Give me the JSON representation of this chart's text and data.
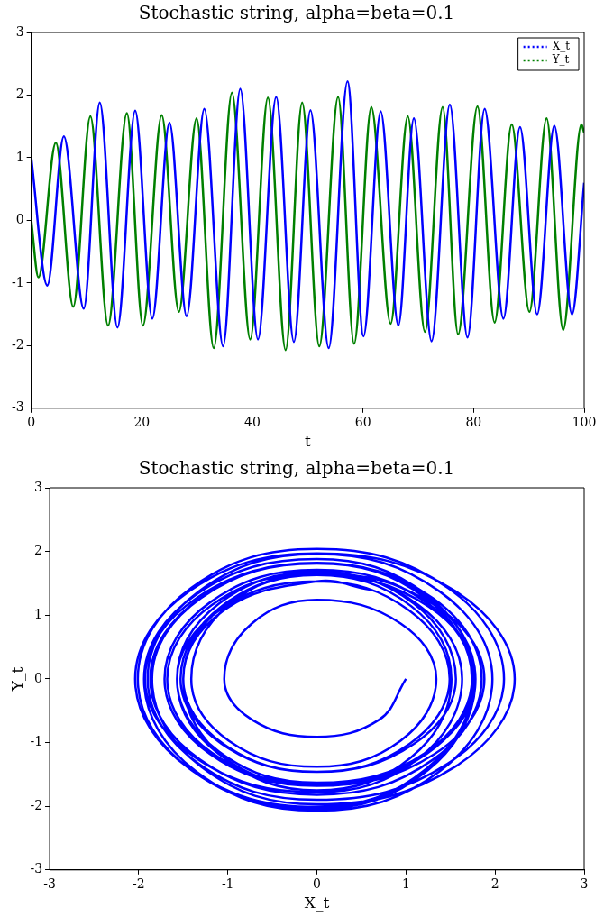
{
  "chart_data": [
    {
      "type": "line",
      "title": "Stochastic string, alpha=beta=0.1",
      "xlabel": "t",
      "xlim": [
        0,
        100
      ],
      "xticks": [
        0,
        20,
        40,
        60,
        80,
        100
      ],
      "ylim": [
        -3,
        3
      ],
      "yticks": [
        -3,
        -2,
        -1,
        0,
        1,
        2,
        3
      ],
      "grid": false,
      "legend": "top right",
      "marker": "none",
      "series": [
        {
          "name": "X_t",
          "color": "#0000ff",
          "x": [
            0,
            2.9,
            5.9,
            9.5,
            12.4,
            15.6,
            18.8,
            21.9,
            25.0,
            28.1,
            31.3,
            34.7,
            37.8,
            41.0,
            44.3,
            47.5,
            50.5,
            53.8,
            57.2,
            60.1,
            63.2,
            66.4,
            69.2,
            72.4,
            75.7,
            78.9,
            82.0,
            85.4,
            88.4,
            91.5,
            94.6,
            97.8,
            100
          ],
          "values": [
            1.0,
            -1.04,
            1.34,
            -1.41,
            1.88,
            -1.71,
            1.75,
            -1.57,
            1.56,
            -1.53,
            1.78,
            -2.01,
            2.1,
            -1.9,
            1.97,
            -1.94,
            1.76,
            -2.04,
            2.22,
            -1.85,
            1.74,
            -1.68,
            1.63,
            -1.93,
            1.85,
            -1.87,
            1.78,
            -1.57,
            1.49,
            -1.5,
            1.51,
            -1.5,
            0.6
          ]
        },
        {
          "name": "Y_t",
          "color": "#008000",
          "x": [
            0,
            1.3,
            4.45,
            7.6,
            10.7,
            13.9,
            17.3,
            20.2,
            23.6,
            26.7,
            29.9,
            33.0,
            36.3,
            39.6,
            42.8,
            46.0,
            49.0,
            52.1,
            55.5,
            58.4,
            61.5,
            65.0,
            68.1,
            71.2,
            74.4,
            77.2,
            80.7,
            83.8,
            86.9,
            90.1,
            93.2,
            96.2,
            99.5,
            100
          ],
          "values": [
            0,
            -0.91,
            1.24,
            -1.38,
            1.66,
            -1.68,
            1.71,
            -1.68,
            1.68,
            -1.46,
            1.63,
            -2.04,
            2.04,
            -1.9,
            1.96,
            -2.07,
            1.88,
            -2.01,
            1.97,
            -1.97,
            1.81,
            -1.65,
            1.66,
            -1.78,
            1.81,
            -1.82,
            1.82,
            -1.63,
            1.53,
            -1.46,
            1.63,
            -1.75,
            1.53,
            1.4
          ]
        }
      ]
    },
    {
      "type": "line",
      "title": "Stochastic string, alpha=beta=0.1",
      "xlabel": "X_t",
      "ylabel": "Y_t",
      "xlim": [
        -3,
        3
      ],
      "xticks": [
        -3,
        -2,
        -1,
        0,
        1,
        2,
        3
      ],
      "ylim": [
        -3,
        3
      ],
      "yticks": [
        -3,
        -2,
        -1,
        0,
        1,
        2,
        3
      ],
      "grid": false,
      "legend": false,
      "marker": "none",
      "series": [
        {
          "color": "#0000ff",
          "x": [
            1.0,
            0.7,
            0,
            -0.73,
            -1.04,
            -0.73,
            0,
            0.94,
            1.34,
            0.94,
            0,
            -0.99,
            -1.41,
            -0.99,
            0,
            1.32,
            1.88,
            1.32,
            0,
            -1.2,
            -1.71,
            -1.2,
            0,
            1.23,
            1.75,
            1.23,
            0,
            -1.1,
            -1.57,
            -1.1,
            0,
            1.09,
            1.56,
            1.09,
            0,
            -1.07,
            -1.53,
            -1.07,
            0,
            1.25,
            1.78,
            1.25,
            0,
            -1.41,
            -2.01,
            -1.41,
            0,
            1.47,
            2.1,
            1.47,
            0,
            -1.33,
            -1.9,
            -1.33,
            0,
            1.38,
            1.97,
            1.38,
            0,
            -1.36,
            -1.94,
            -1.36,
            0,
            1.23,
            1.76,
            1.23,
            0,
            -1.43,
            -2.04,
            -1.43,
            0,
            1.55,
            2.22,
            1.55,
            0,
            -1.3,
            -1.85,
            -1.3,
            0,
            1.22,
            1.74,
            1.22,
            0,
            -1.18,
            -1.68,
            -1.18,
            0,
            1.14,
            1.63,
            1.14,
            0,
            -1.35,
            -1.93,
            -1.35,
            0,
            1.3,
            1.85,
            1.3,
            0,
            -1.31,
            -1.87,
            -1.31,
            0,
            1.25,
            1.78,
            1.25,
            0,
            -1.1,
            -1.57,
            -1.1,
            0,
            1.04,
            1.49,
            1.04,
            0,
            -1.05,
            -1.5,
            -1.05,
            0,
            1.06,
            1.51,
            1.06,
            0,
            -1.05,
            -1.5,
            -1.05,
            0,
            0.6
          ],
          "values": [
            0,
            -0.64,
            -0.91,
            -0.64,
            0,
            0.87,
            1.24,
            0.87,
            0,
            -0.97,
            -1.38,
            -0.97,
            0,
            1.16,
            1.66,
            1.16,
            0,
            -1.18,
            -1.68,
            -1.18,
            0,
            1.2,
            1.71,
            1.2,
            0,
            -1.18,
            -1.68,
            -1.18,
            0,
            1.18,
            1.68,
            1.18,
            0,
            -1.02,
            -1.46,
            -1.02,
            0,
            1.14,
            1.63,
            1.14,
            0,
            -1.43,
            -2.04,
            -1.43,
            0,
            1.43,
            2.04,
            1.43,
            0,
            -1.33,
            -1.9,
            -1.33,
            0,
            1.37,
            1.96,
            1.37,
            0,
            -1.45,
            -2.07,
            -1.45,
            0,
            1.32,
            1.88,
            1.32,
            0,
            -1.41,
            -2.01,
            -1.41,
            0,
            1.38,
            1.97,
            1.38,
            0,
            -1.38,
            -1.97,
            -1.38,
            0,
            1.27,
            1.81,
            1.27,
            0,
            -1.16,
            -1.65,
            -1.16,
            0,
            1.16,
            1.66,
            1.16,
            0,
            -1.25,
            -1.78,
            -1.25,
            0,
            1.27,
            1.81,
            1.27,
            0,
            -1.27,
            -1.82,
            -1.27,
            0,
            1.27,
            1.82,
            1.27,
            0,
            -1.14,
            -1.63,
            -1.14,
            0,
            1.07,
            1.53,
            1.07,
            0,
            -1.02,
            -1.46,
            -1.02,
            0,
            1.14,
            1.63,
            1.14,
            0,
            -1.23,
            -1.75,
            -1.23,
            0,
            1.07,
            1.53,
            1.4
          ]
        }
      ]
    }
  ]
}
